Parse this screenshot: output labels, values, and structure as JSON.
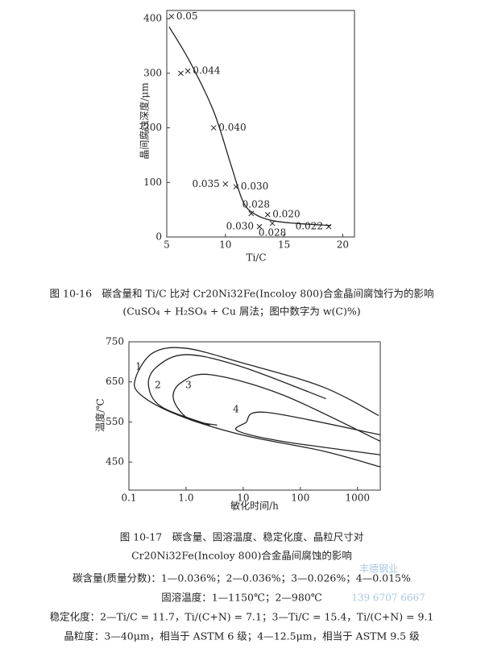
{
  "chart_data": [
    {
      "type": "scatter",
      "x_label": "Ti/C",
      "y_label": "晶间腐蚀深度/μm",
      "x": [
        5.4,
        6.2,
        6.8,
        9.0,
        10.0,
        10.9,
        12.2,
        13.6,
        12.9,
        14.0,
        18.8
      ],
      "values": [
        404,
        300,
        304,
        200,
        97,
        92,
        43,
        41,
        19,
        25,
        19
      ],
      "labels": [
        "0.05",
        null,
        "0.044",
        "0.040",
        "0.035",
        "0.030",
        "0.028",
        "0.020",
        "0.030",
        "0.028",
        "0.022"
      ],
      "curve": {
        "x": [
          5.2,
          7,
          9,
          10.5,
          11.5,
          12.5,
          14,
          16,
          19
        ],
        "values": [
          385,
          320,
          230,
          130,
          65,
          42,
          30,
          25,
          21
        ]
      },
      "color": "#222",
      "xlim": [
        5,
        21
      ],
      "ylim": [
        0,
        415
      ],
      "xticks": [
        5,
        10,
        15,
        20
      ],
      "yticks": [
        0,
        100,
        200,
        300,
        400
      ],
      "caption": [
        "图 10-16　碳含量和 Ti/C 比对 Cr20Ni32Fe(Incoloy 800)合金晶间腐蚀行为的影响",
        "(CuSO₄ + H₂SO₄ + Cu 屑法；图中数字为 w(C)%)"
      ]
    },
    {
      "type": "line",
      "log_x": true,
      "x_label": "敏化时间/h",
      "y_label": "温度/℃",
      "color": "#222",
      "series": [
        {
          "name": "1",
          "x": [
            2350,
            240,
            9.3,
            0.97,
            0.26,
            0.13,
            0.16,
            0.7,
            9.3,
            240,
            2500
          ],
          "y": [
            566,
            638,
            698,
            734,
            722,
            658,
            618,
            568,
            518,
            478,
            438
          ]
        },
        {
          "name": "2",
          "x": [
            280,
            9.3,
            1.0,
            0.31,
            0.22,
            0.37,
            2.6
          ],
          "y": [
            608,
            688,
            718,
            688,
            642,
            588,
            542
          ]
        },
        {
          "name": "3",
          "x": [
            2500,
            48,
            2.6,
            0.82,
            0.6,
            1.1,
            3.5
          ],
          "y": [
            502,
            618,
            668,
            648,
            608,
            558,
            542
          ]
        },
        {
          "name": "4",
          "x": [
            2500,
            25,
            11,
            8,
            47,
            2500
          ],
          "y": [
            518,
            574,
            548,
            528,
            502,
            468
          ]
        }
      ],
      "xlim": [
        0.1,
        2500
      ],
      "ylim": [
        380,
        750
      ],
      "xticks": [
        0.1,
        {
          "value": 1,
          "label": "1.0"
        },
        10,
        100,
        1000
      ],
      "yticks": [
        450,
        550,
        650,
        750
      ],
      "caption": [
        "图 10-17　碳含量、固溶温度、稳定化度、晶粒尺寸对",
        "Cr20Ni32Fe(Incoloy 800)合金晶间腐蚀的影响",
        "碳含量(质量分数)：1—0.036%；2—0.036%；3—0.026%；4—0.015%",
        "固溶温度：1—1150℃；2—980℃",
        "稳定化度：2—Ti/C = 11.7，Ti/(C+N) = 7.1；3—Ti/C = 15.4，Ti/(C+N) = 9.1",
        "晶粒度：3—40μm，相当于 ASTM 6 级；4—12.5μm，相当于 ASTM 9.5 级"
      ]
    }
  ],
  "watermark": [
    "丰德钢业",
    "139 6707 6667"
  ]
}
